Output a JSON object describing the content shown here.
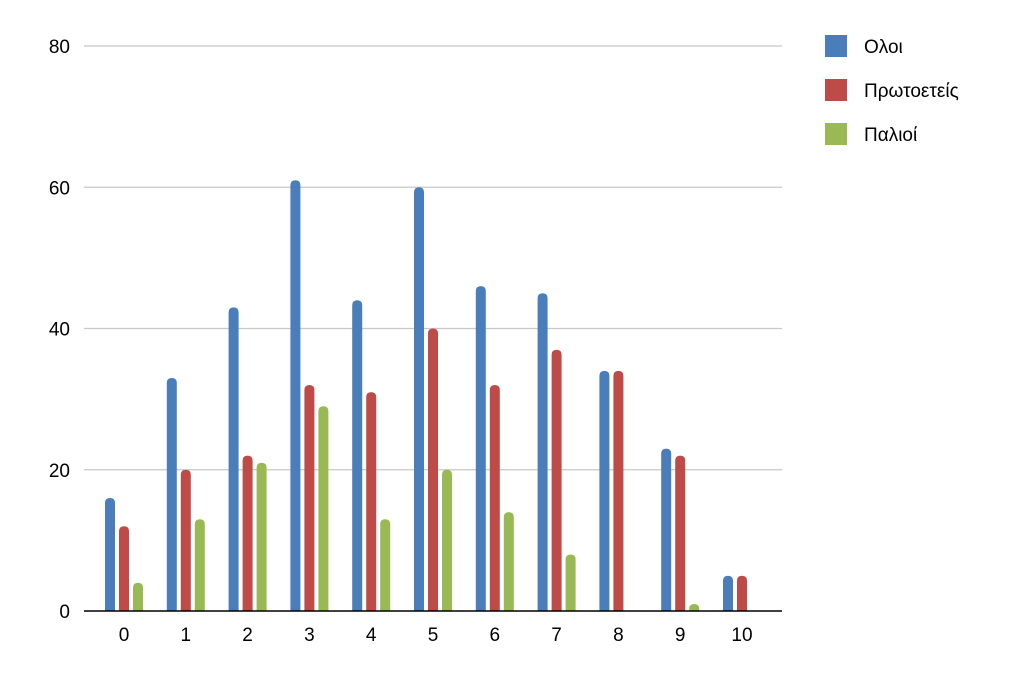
{
  "chart_data": {
    "type": "bar",
    "title": "",
    "xlabel": "",
    "ylabel": "",
    "categories": [
      "0",
      "1",
      "2",
      "3",
      "4",
      "5",
      "6",
      "7",
      "8",
      "9",
      "10"
    ],
    "series": [
      {
        "name": "Ολοι",
        "color": "#4a7ebb",
        "values": [
          16,
          33,
          43,
          61,
          44,
          60,
          46,
          45,
          34,
          23,
          5
        ]
      },
      {
        "name": "Πρωτοετείς",
        "color": "#be4b48",
        "values": [
          12,
          20,
          22,
          32,
          31,
          40,
          32,
          37,
          34,
          22,
          5
        ]
      },
      {
        "name": "Παλιοί",
        "color": "#98b954",
        "values": [
          4,
          13,
          21,
          29,
          13,
          20,
          14,
          8,
          0,
          1,
          0
        ]
      }
    ],
    "ylim": [
      0,
      80
    ],
    "yticks": [
      0,
      20,
      40,
      60,
      80
    ],
    "grid": true,
    "legend": "top-right"
  }
}
